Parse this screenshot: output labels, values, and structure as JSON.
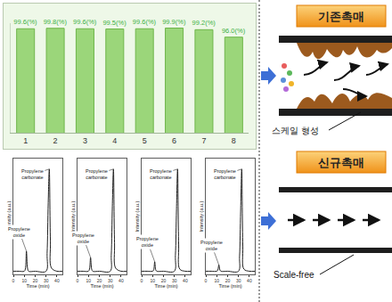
{
  "chart_data": [
    {
      "type": "bar",
      "categories": [
        "1",
        "2",
        "3",
        "4",
        "5",
        "6",
        "7",
        "8"
      ],
      "values": [
        99.6,
        99.8,
        99.6,
        99.5,
        99.6,
        99.9,
        99.2,
        96.0
      ],
      "value_labels": [
        "99.6(%)",
        "99.8(%)",
        "99.6(%)",
        "99.5(%)",
        "99.6(%)",
        "99.9(%)",
        "99.2(%)",
        "96.0(%)"
      ],
      "data_labels": true,
      "color": "#9bd67a",
      "ylim": [
        55,
        102
      ],
      "yticks": [],
      "tick_labels": "x",
      "grid": false
    },
    {
      "type": "line",
      "x_label": "Time (min)",
      "y_label": "Intensity (a.u.)",
      "x": [
        0,
        5,
        10,
        11,
        12,
        13,
        14,
        20,
        30,
        31,
        32,
        33,
        34,
        35,
        40,
        45
      ],
      "values": [
        3,
        3,
        3,
        5,
        22,
        6,
        3,
        3,
        3,
        20,
        68,
        100,
        32,
        6,
        3,
        3
      ],
      "color": "#222222",
      "xlim": [
        0,
        45
      ],
      "xticks": [
        0,
        10,
        20,
        30,
        40
      ],
      "ylim": [
        0,
        110
      ],
      "yticks": [],
      "tick_labels": "x",
      "annotations": [
        {
          "text": "Propylene carbonate",
          "x": 33,
          "y": 100
        },
        {
          "text": "Propylene oxide",
          "x": 12,
          "y": 22
        }
      ]
    },
    {
      "type": "line",
      "x_label": "Time (min)",
      "y_label": "Intensity (a.u.)",
      "x": [
        0,
        5,
        10,
        11,
        12,
        13,
        14,
        20,
        30,
        31,
        32,
        33,
        34,
        35,
        40,
        45
      ],
      "values": [
        3,
        3,
        3,
        5,
        16,
        5,
        3,
        3,
        3,
        18,
        65,
        100,
        30,
        6,
        3,
        3
      ],
      "color": "#222222",
      "xlim": [
        0,
        45
      ],
      "xticks": [
        0,
        10,
        20,
        30,
        40
      ],
      "ylim": [
        0,
        110
      ],
      "yticks": [],
      "tick_labels": "x",
      "annotations": [
        {
          "text": "Propylene carbonate",
          "x": 33,
          "y": 100
        },
        {
          "text": "Propylene oxide",
          "x": 12,
          "y": 16
        }
      ]
    },
    {
      "type": "line",
      "x_label": "Time (min)",
      "y_label": "Intensity (a.u.)",
      "x": [
        0,
        5,
        10,
        11,
        12,
        13,
        14,
        20,
        30,
        31,
        32,
        33,
        34,
        35,
        40,
        45
      ],
      "values": [
        3,
        3,
        3,
        4,
        12,
        4,
        3,
        3,
        3,
        18,
        62,
        100,
        28,
        5,
        3,
        3
      ],
      "color": "#222222",
      "xlim": [
        0,
        45
      ],
      "xticks": [
        0,
        10,
        20,
        30,
        40
      ],
      "ylim": [
        0,
        110
      ],
      "yticks": [],
      "tick_labels": "x",
      "annotations": [
        {
          "text": "Propylene carbonate",
          "x": 33,
          "y": 100
        },
        {
          "text": "Propylene oxide",
          "x": 12,
          "y": 12
        }
      ]
    },
    {
      "type": "line",
      "x_label": "Time (min)",
      "y_label": "Intensity (a.u.)",
      "x": [
        0,
        5,
        10,
        11,
        12,
        13,
        14,
        20,
        30,
        31,
        32,
        33,
        34,
        35,
        40,
        45
      ],
      "values": [
        3,
        3,
        3,
        4,
        9,
        4,
        3,
        3,
        3,
        17,
        60,
        100,
        27,
        5,
        3,
        3
      ],
      "color": "#222222",
      "xlim": [
        0,
        45
      ],
      "xticks": [
        0,
        10,
        20,
        30,
        40
      ],
      "ylim": [
        0,
        110
      ],
      "yticks": [],
      "tick_labels": "x",
      "annotations": [
        {
          "text": "Propylene carbonate",
          "x": 33,
          "y": 100
        },
        {
          "text": "Propylene oxide",
          "x": 12,
          "y": 9
        }
      ]
    }
  ],
  "diagram": {
    "panels": [
      {
        "title": "기존촉매",
        "label": "스케일 형성"
      },
      {
        "title": "신규촉매",
        "label": "Scale-free"
      }
    ]
  }
}
